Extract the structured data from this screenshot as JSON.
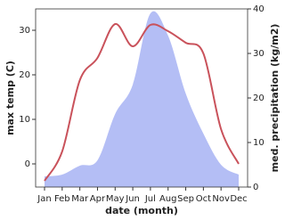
{
  "chart_data": {
    "type": "line",
    "x_label": "date (month)",
    "y_label": "max temp (C)",
    "y2_label": "med. precipitation (kg/m2)",
    "categories": [
      "Jan",
      "Feb",
      "Mar",
      "Apr",
      "May",
      "Jun",
      "Jul",
      "Aug",
      "Sep",
      "Oct",
      "Nov",
      "Dec"
    ],
    "series": [
      {
        "name": "med. precipitation",
        "color": "#b4bef5",
        "axis": "y2",
        "kind": "area",
        "values": [
          2.4,
          2.8,
          4.8,
          6,
          16.4,
          23,
          39,
          34,
          21,
          12,
          5,
          2.8
        ]
      },
      {
        "name": "max temp",
        "color": "#c9525b",
        "kind": "line",
        "values": [
          -3.8,
          2.8,
          18.8,
          23.8,
          31.4,
          26.4,
          31.2,
          29.8,
          27.2,
          24.8,
          7.8,
          0
        ]
      }
    ],
    "ylim": [
      -5.2,
      34.8
    ],
    "yticks": [
      0,
      10,
      20,
      30
    ],
    "y2lim": [
      0,
      40
    ],
    "y2ticks": [
      0,
      10,
      20,
      30,
      40
    ]
  }
}
